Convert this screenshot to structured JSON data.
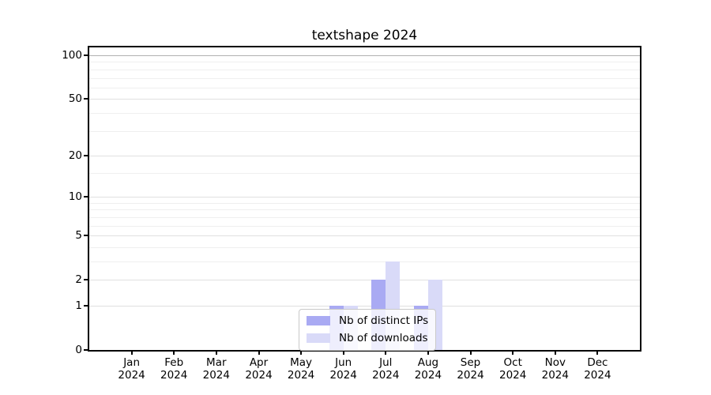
{
  "title": "textshape 2024",
  "colors": {
    "bar_ips": "#a9aaf3",
    "bar_downloads": "#d9daf8",
    "grid_minor": "#efefef",
    "grid_major": "#e0e0e0",
    "grid_top": "#b0b0b0",
    "axis": "#000000",
    "legend_border": "#c9c9c9",
    "background": "#ffffff"
  },
  "chart_data": {
    "type": "bar",
    "title": "textshape 2024",
    "categories": [
      "Jan 2024",
      "Feb 2024",
      "Mar 2024",
      "Apr 2024",
      "May 2024",
      "Jun 2024",
      "Jul 2024",
      "Aug 2024",
      "Sep 2024",
      "Oct 2024",
      "Nov 2024",
      "Dec 2024"
    ],
    "series": [
      {
        "name": "Nb of distinct IPs",
        "color": "#a9aaf3",
        "values": [
          0,
          0,
          0,
          0,
          0,
          1,
          2,
          1,
          0,
          0,
          0,
          0
        ]
      },
      {
        "name": "Nb of downloads",
        "color": "#d9daf8",
        "values": [
          0,
          0,
          0,
          0,
          0,
          1,
          3,
          2,
          0,
          0,
          0,
          0
        ]
      }
    ],
    "xlabel": "",
    "ylabel": "",
    "yscale": "log1p",
    "y_ticks": [
      0,
      1,
      2,
      5,
      10,
      20,
      50,
      100
    ],
    "y_minor_gridlines": [
      3,
      4,
      6,
      7,
      8,
      9,
      15,
      30,
      40,
      60,
      70,
      80,
      90
    ],
    "ylim": [
      0,
      115
    ],
    "grid": true,
    "legend_position": "lower center",
    "legend_entries": [
      "Nb of distinct IPs",
      "Nb of downloads"
    ]
  }
}
